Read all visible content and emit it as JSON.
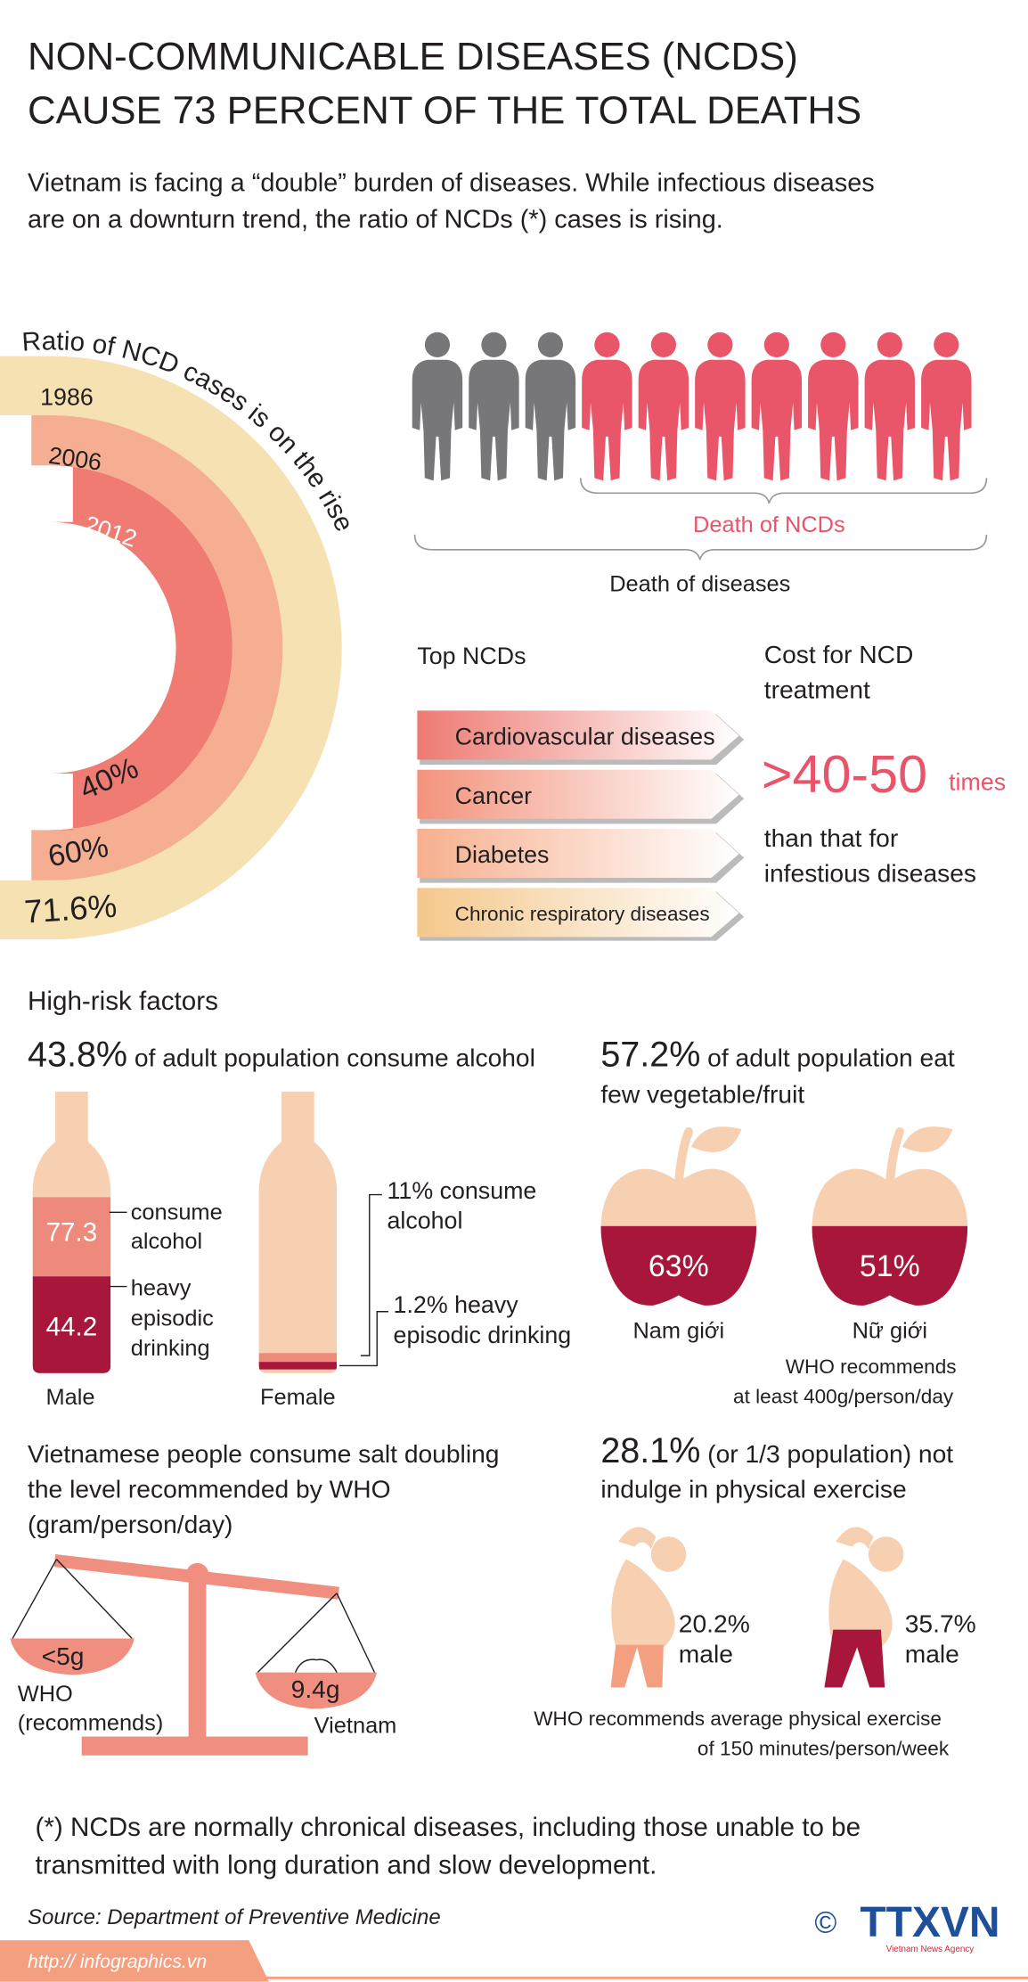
{
  "header": {
    "title": [
      "NON-COMMUNICABLE DISEASES (NCDS)",
      "CAUSE 73 PERCENT OF THE TOTAL DEATHS"
    ],
    "subtitle": [
      "Vietnam is facing a “double” burden of diseases. While infectious diseases",
      "are on a downturn trend, the ratio of NCDs (*) cases is rising."
    ]
  },
  "ratio": {
    "title": "Ratio of NCD cases is on the rise",
    "rings": [
      {
        "year": "1986",
        "value": "71.6%"
      },
      {
        "year": "2006",
        "value": "60%"
      },
      {
        "year": "2012",
        "value": "40%"
      }
    ]
  },
  "deaths": {
    "ncd_label": "Death of NCDs",
    "all_label": "Death of diseases"
  },
  "top_ncds": {
    "title": "Top NCDs",
    "items": [
      "Cardiovascular diseases",
      "Cancer",
      "Diabetes",
      "Chronic respiratory diseases"
    ]
  },
  "cost": {
    "title": [
      "Cost for NCD",
      "treatment"
    ],
    "value": ">40-50",
    "unit": "times",
    "note": [
      "than that for",
      "infestious diseases"
    ]
  },
  "risk": {
    "title": "High-risk factors",
    "alcohol": {
      "value": "43.8%",
      "text": "of adult population consume alcohol",
      "male": {
        "label": "Male",
        "consume": "77.3",
        "consume_label": [
          "consume",
          "alcohol"
        ],
        "heavy": "44.2",
        "heavy_label": [
          "heavy",
          "episodic",
          "drinking"
        ]
      },
      "female": {
        "label": "Female",
        "consume_label": [
          "11% consume",
          "alcohol"
        ],
        "heavy_label": [
          "1.2% heavy",
          "episodic drinking"
        ]
      }
    },
    "vegetable": {
      "value": "57.2%",
      "text": [
        "of adult population eat",
        "few vegetable/fruit"
      ],
      "male": {
        "value": "63%",
        "label": "Nam giới"
      },
      "female": {
        "value": "51%",
        "label": "Nữ giới"
      },
      "note": [
        "WHO recommends",
        "at least 400g/person/day"
      ]
    },
    "salt": {
      "text": [
        "Vietnamese people consume salt doubling",
        "the level recommended by WHO",
        "(gram/person/day)"
      ],
      "who": {
        "value": "<5g",
        "label": [
          "WHO",
          "(recommends)"
        ]
      },
      "vietnam": {
        "value": "9.4g",
        "label": "Vietnam"
      }
    },
    "exercise": {
      "value": "28.1%",
      "text": [
        "(or 1/3 population) not",
        "indulge in physical exercise"
      ],
      "groups": [
        {
          "value": "20.2%",
          "label": "male"
        },
        {
          "value": "35.7%",
          "label": "male"
        }
      ],
      "note": [
        "WHO recommends average physical exercise",
        "of 150 minutes/person/week"
      ]
    }
  },
  "footer": {
    "note": [
      "(*) NCDs are normally chronical diseases, including those unable to be",
      "transmitted with long duration and slow development."
    ],
    "source": "Source: Department of Preventive Medicine",
    "url": "http:// infographics.vn",
    "copyright": "©",
    "logo": "TTXVN",
    "agency": "Vietnam News Agency"
  }
}
